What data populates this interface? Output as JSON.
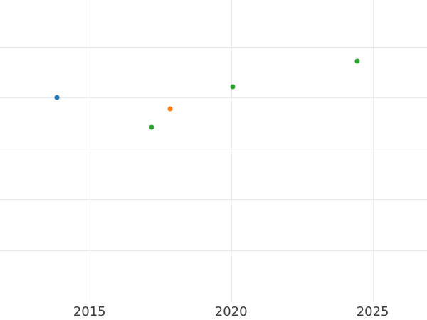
{
  "chart_data": {
    "type": "scatter",
    "title": "",
    "xlabel": "",
    "ylabel": "",
    "x_ticks": [
      2015,
      2020,
      2025
    ],
    "xlim": [
      2011.84,
      2026.92
    ],
    "ylim": [
      0,
      5.915
    ],
    "y_units": "unlabeled (gridline units, 1 per horizontal gridline from bottom edge)",
    "y_gridline_units": [
      1,
      2,
      3,
      4,
      5
    ],
    "grid": true,
    "legend": "none",
    "series": [
      {
        "name": "series-blue",
        "color": "#1f77b4",
        "points": [
          {
            "x": 2013.84,
            "y": 4.0
          }
        ]
      },
      {
        "name": "series-orange",
        "color": "#ff7f0e",
        "points": [
          {
            "x": 2017.85,
            "y": 3.78
          }
        ]
      },
      {
        "name": "series-green",
        "color": "#2ca02c",
        "points": [
          {
            "x": 2017.2,
            "y": 3.42
          },
          {
            "x": 2020.05,
            "y": 4.21
          },
          {
            "x": 2024.46,
            "y": 4.72
          }
        ]
      }
    ]
  },
  "colors": {
    "background": "#ffffff",
    "grid_horizontal": "#e8e8e8",
    "grid_vertical": "#ececec",
    "tick_label": "#3b3b3b"
  }
}
